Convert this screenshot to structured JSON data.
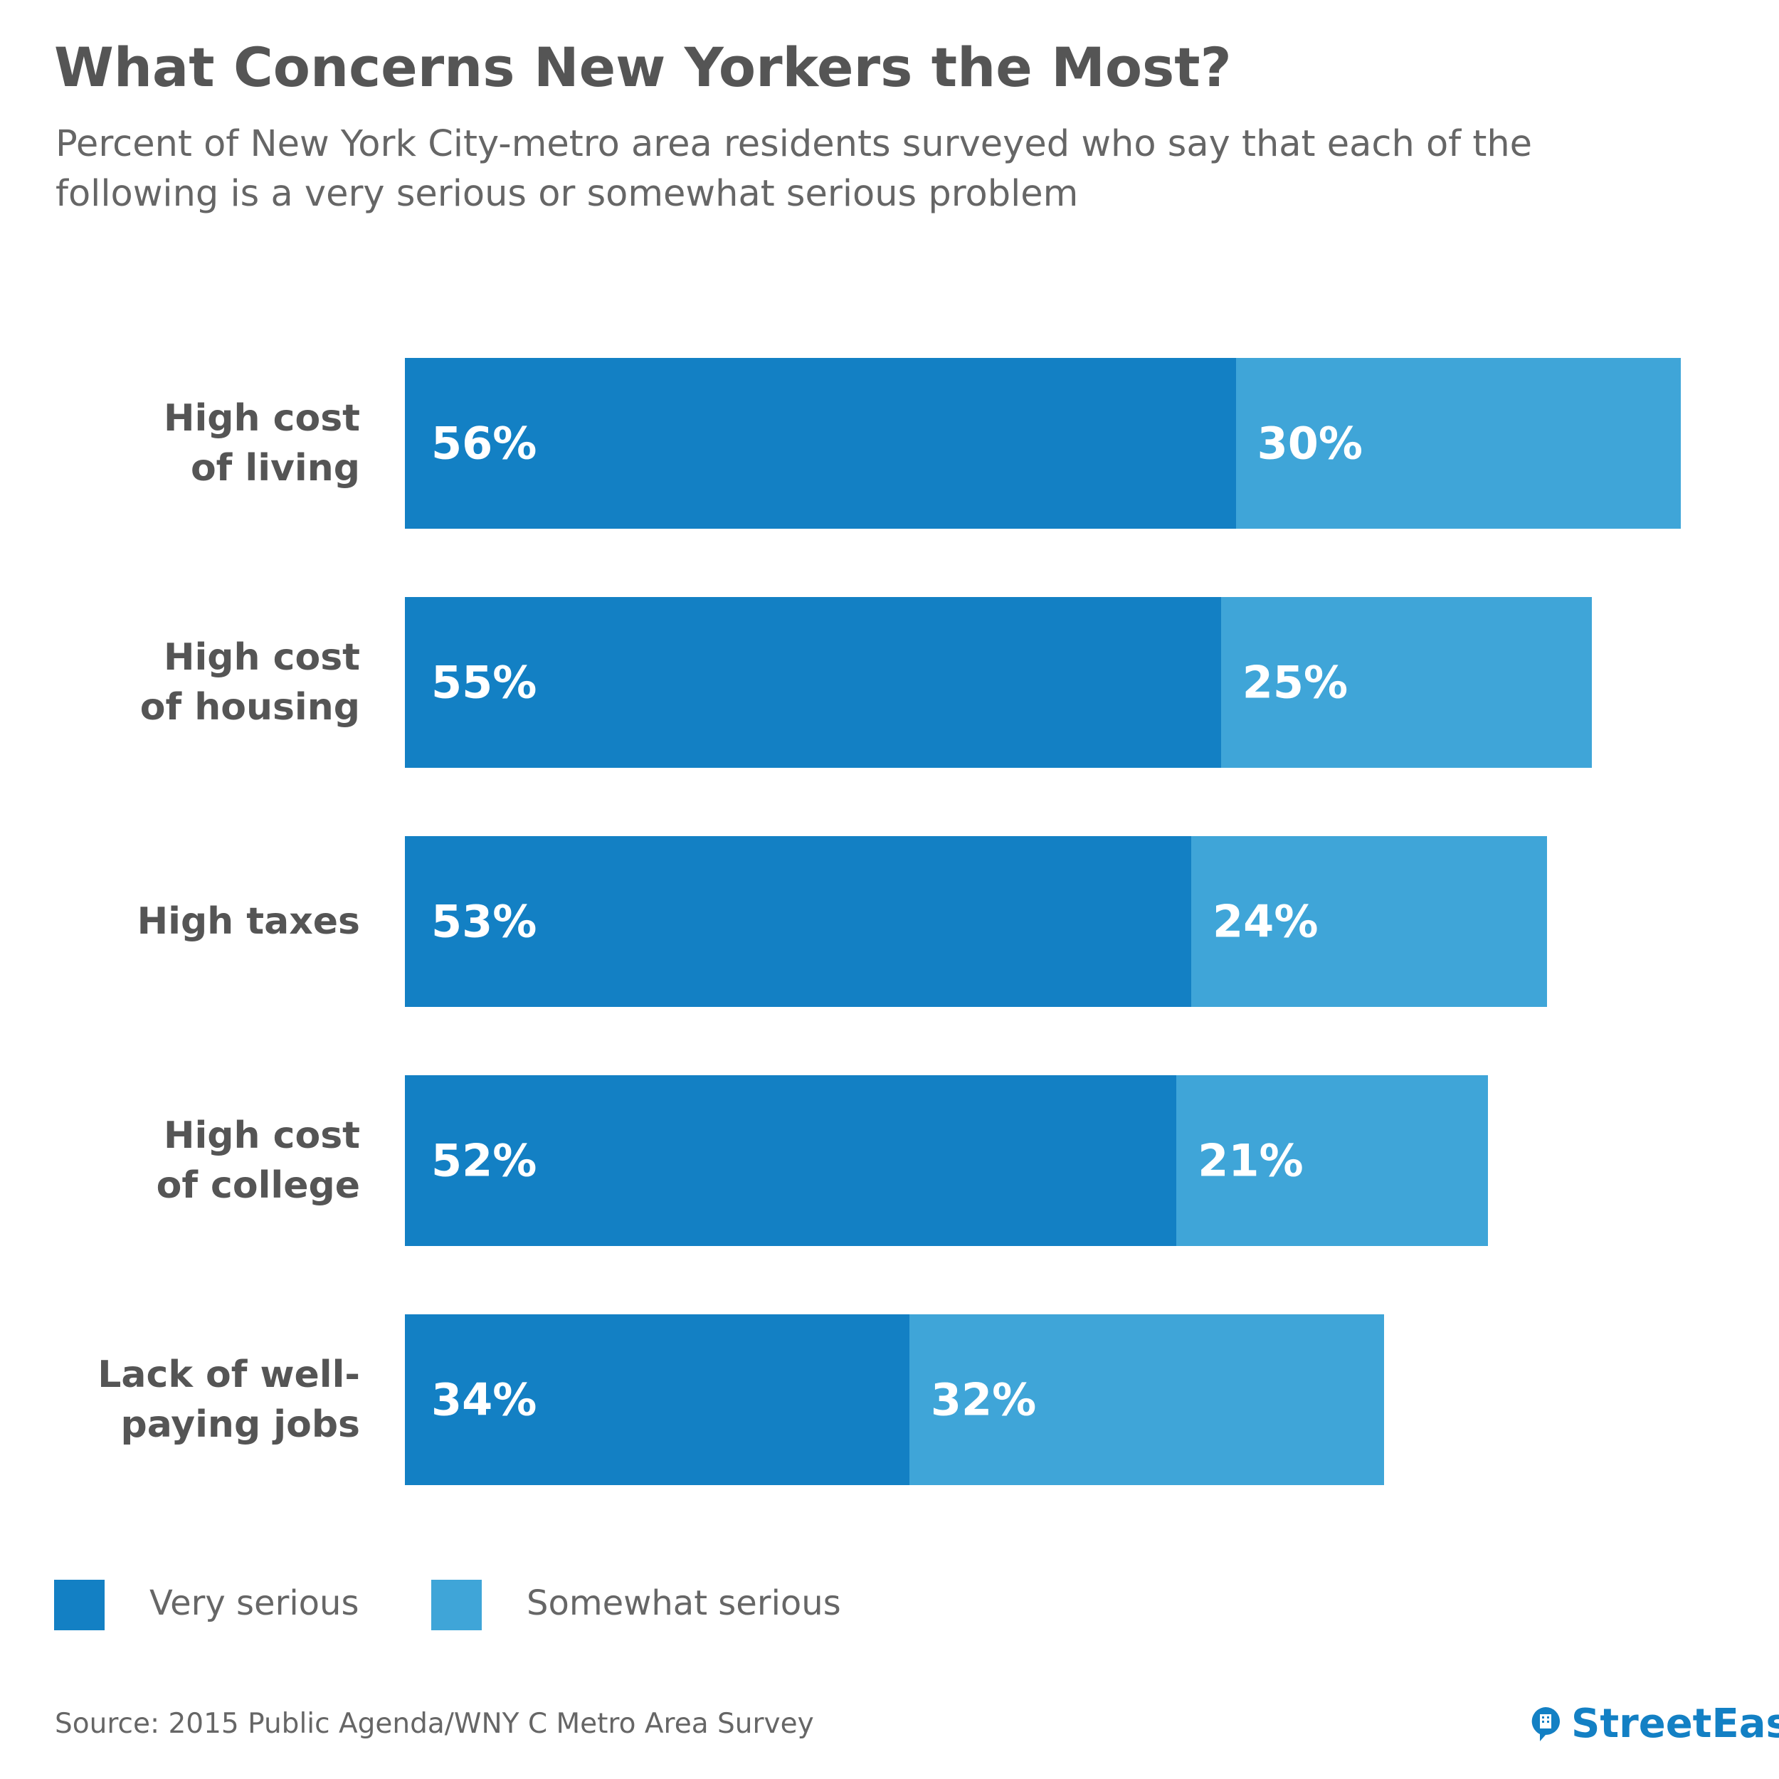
{
  "chart_data": {
    "type": "stacked-bar-horizontal",
    "title": "What Concerns New Yorkers the Most?",
    "subtitle": "Percent of New York City-metro area residents surveyed who say that each of the\nfollowing is a very serious or somewhat serious problem",
    "categories": [
      "High cost\nof living",
      "High cost\nof housing",
      "High taxes",
      "High cost\nof college",
      "Lack of well-\npaying jobs"
    ],
    "series": [
      {
        "name": "Very serious",
        "color": "#1380c4",
        "values": [
          56,
          55,
          53,
          52,
          34
        ],
        "value_labels": [
          "56%",
          "55%",
          "53%",
          "52%",
          "34%"
        ]
      },
      {
        "name": "Somewhat serious",
        "color": "#3fa5d8",
        "values": [
          30,
          25,
          24,
          21,
          32
        ],
        "value_labels": [
          "30%",
          "25%",
          "24%",
          "21%",
          "32%"
        ]
      }
    ],
    "source": "Source: 2015 Public Agenda/WNY C Metro Area Survey",
    "logo": "StreetEasy"
  }
}
